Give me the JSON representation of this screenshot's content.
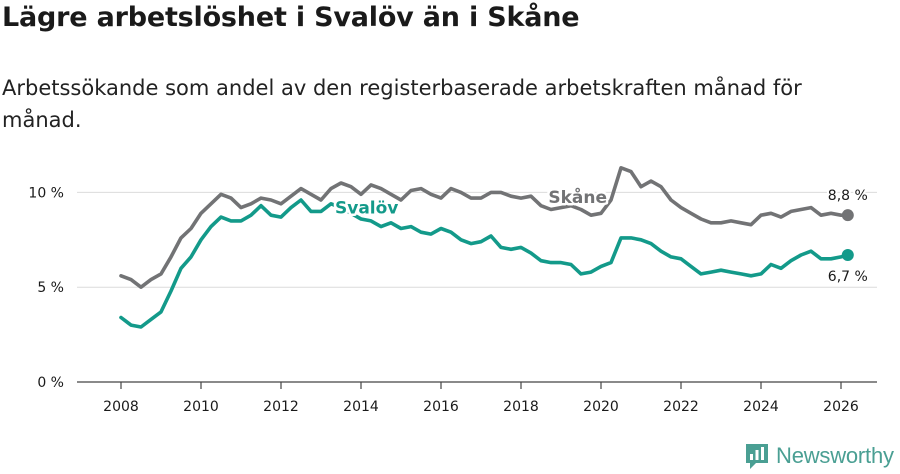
{
  "title": "Lägre arbetslöshet i Svalöv än i Skåne",
  "subtitle": "Arbetssökande som andel av den registerbaserade arbetskraften månad för månad.",
  "brand": {
    "name": "Newsworthy",
    "icon": "newsworthy-logo-icon"
  },
  "colors": {
    "svalov": "#139a8a",
    "skane": "#727375",
    "grid": "#dcdcdc",
    "axis": "#444444",
    "text": "#1a1a1a"
  },
  "chart_data": {
    "type": "line",
    "title": "Lägre arbetslöshet i Svalöv än i Skåne",
    "xlabel": "",
    "ylabel": "",
    "xlim": [
      2006.9,
      2026.9
    ],
    "ylim": [
      0,
      11.5
    ],
    "xticks": [
      2008,
      2010,
      2012,
      2014,
      2016,
      2018,
      2020,
      2022,
      2024,
      2026
    ],
    "xtick_labels": [
      "2008",
      "2010",
      "2012",
      "2014",
      "2016",
      "2018",
      "2020",
      "2022",
      "2024",
      "2026"
    ],
    "yticks": [
      0,
      5,
      10
    ],
    "ytick_labels": [
      "0 %",
      "5 %",
      "10 %"
    ],
    "grid": true,
    "legend": "inline labels",
    "series": [
      {
        "name": "Skåne",
        "label": "Skåne",
        "end_label": "8,8 %",
        "points": [
          [
            2008.0,
            5.6
          ],
          [
            2008.25,
            5.4
          ],
          [
            2008.5,
            5.0
          ],
          [
            2008.75,
            5.4
          ],
          [
            2009.0,
            5.7
          ],
          [
            2009.25,
            6.6
          ],
          [
            2009.5,
            7.6
          ],
          [
            2009.75,
            8.1
          ],
          [
            2010.0,
            8.9
          ],
          [
            2010.25,
            9.4
          ],
          [
            2010.5,
            9.9
          ],
          [
            2010.75,
            9.7
          ],
          [
            2011.0,
            9.2
          ],
          [
            2011.25,
            9.4
          ],
          [
            2011.5,
            9.7
          ],
          [
            2011.75,
            9.6
          ],
          [
            2012.0,
            9.4
          ],
          [
            2012.25,
            9.8
          ],
          [
            2012.5,
            10.2
          ],
          [
            2012.75,
            9.9
          ],
          [
            2013.0,
            9.6
          ],
          [
            2013.25,
            10.2
          ],
          [
            2013.5,
            10.5
          ],
          [
            2013.75,
            10.3
          ],
          [
            2014.0,
            9.9
          ],
          [
            2014.25,
            10.4
          ],
          [
            2014.5,
            10.2
          ],
          [
            2014.75,
            9.9
          ],
          [
            2015.0,
            9.6
          ],
          [
            2015.25,
            10.1
          ],
          [
            2015.5,
            10.2
          ],
          [
            2015.75,
            9.9
          ],
          [
            2016.0,
            9.7
          ],
          [
            2016.25,
            10.2
          ],
          [
            2016.5,
            10.0
          ],
          [
            2016.75,
            9.7
          ],
          [
            2017.0,
            9.7
          ],
          [
            2017.25,
            10.0
          ],
          [
            2017.5,
            10.0
          ],
          [
            2017.75,
            9.8
          ],
          [
            2018.0,
            9.7
          ],
          [
            2018.25,
            9.8
          ],
          [
            2018.5,
            9.3
          ],
          [
            2018.75,
            9.1
          ],
          [
            2019.0,
            9.2
          ],
          [
            2019.25,
            9.3
          ],
          [
            2019.5,
            9.1
          ],
          [
            2019.75,
            8.8
          ],
          [
            2020.0,
            8.9
          ],
          [
            2020.25,
            9.6
          ],
          [
            2020.5,
            11.3
          ],
          [
            2020.75,
            11.1
          ],
          [
            2021.0,
            10.3
          ],
          [
            2021.25,
            10.6
          ],
          [
            2021.5,
            10.3
          ],
          [
            2021.75,
            9.6
          ],
          [
            2022.0,
            9.2
          ],
          [
            2022.25,
            8.9
          ],
          [
            2022.5,
            8.6
          ],
          [
            2022.75,
            8.4
          ],
          [
            2023.0,
            8.4
          ],
          [
            2023.25,
            8.5
          ],
          [
            2023.5,
            8.4
          ],
          [
            2023.75,
            8.3
          ],
          [
            2024.0,
            8.8
          ],
          [
            2024.25,
            8.9
          ],
          [
            2024.5,
            8.7
          ],
          [
            2024.75,
            9.0
          ],
          [
            2025.0,
            9.1
          ],
          [
            2025.25,
            9.2
          ],
          [
            2025.5,
            8.8
          ],
          [
            2025.75,
            8.9
          ],
          [
            2026.0,
            8.8
          ],
          [
            2026.17,
            8.8
          ]
        ]
      },
      {
        "name": "Svalöv",
        "label": "Svalöv",
        "end_label": "6,7 %",
        "points": [
          [
            2008.0,
            3.4
          ],
          [
            2008.25,
            3.0
          ],
          [
            2008.5,
            2.9
          ],
          [
            2008.75,
            3.3
          ],
          [
            2009.0,
            3.7
          ],
          [
            2009.25,
            4.8
          ],
          [
            2009.5,
            6.0
          ],
          [
            2009.75,
            6.6
          ],
          [
            2010.0,
            7.5
          ],
          [
            2010.25,
            8.2
          ],
          [
            2010.5,
            8.7
          ],
          [
            2010.75,
            8.5
          ],
          [
            2011.0,
            8.5
          ],
          [
            2011.25,
            8.8
          ],
          [
            2011.5,
            9.3
          ],
          [
            2011.75,
            8.8
          ],
          [
            2012.0,
            8.7
          ],
          [
            2012.25,
            9.2
          ],
          [
            2012.5,
            9.6
          ],
          [
            2012.75,
            9.0
          ],
          [
            2013.0,
            9.0
          ],
          [
            2013.25,
            9.4
          ],
          [
            2013.5,
            9.2
          ],
          [
            2013.75,
            8.9
          ],
          [
            2014.0,
            8.6
          ],
          [
            2014.25,
            8.5
          ],
          [
            2014.5,
            8.2
          ],
          [
            2014.75,
            8.4
          ],
          [
            2015.0,
            8.1
          ],
          [
            2015.25,
            8.2
          ],
          [
            2015.5,
            7.9
          ],
          [
            2015.75,
            7.8
          ],
          [
            2016.0,
            8.1
          ],
          [
            2016.25,
            7.9
          ],
          [
            2016.5,
            7.5
          ],
          [
            2016.75,
            7.3
          ],
          [
            2017.0,
            7.4
          ],
          [
            2017.25,
            7.7
          ],
          [
            2017.5,
            7.1
          ],
          [
            2017.75,
            7.0
          ],
          [
            2018.0,
            7.1
          ],
          [
            2018.25,
            6.8
          ],
          [
            2018.5,
            6.4
          ],
          [
            2018.75,
            6.3
          ],
          [
            2019.0,
            6.3
          ],
          [
            2019.25,
            6.2
          ],
          [
            2019.5,
            5.7
          ],
          [
            2019.75,
            5.8
          ],
          [
            2020.0,
            6.1
          ],
          [
            2020.25,
            6.3
          ],
          [
            2020.5,
            7.6
          ],
          [
            2020.75,
            7.6
          ],
          [
            2021.0,
            7.5
          ],
          [
            2021.25,
            7.3
          ],
          [
            2021.5,
            6.9
          ],
          [
            2021.75,
            6.6
          ],
          [
            2022.0,
            6.5
          ],
          [
            2022.25,
            6.1
          ],
          [
            2022.5,
            5.7
          ],
          [
            2022.75,
            5.8
          ],
          [
            2023.0,
            5.9
          ],
          [
            2023.25,
            5.8
          ],
          [
            2023.5,
            5.7
          ],
          [
            2023.75,
            5.6
          ],
          [
            2024.0,
            5.7
          ],
          [
            2024.25,
            6.2
          ],
          [
            2024.5,
            6.0
          ],
          [
            2024.75,
            6.4
          ],
          [
            2025.0,
            6.7
          ],
          [
            2025.25,
            6.9
          ],
          [
            2025.5,
            6.5
          ],
          [
            2025.75,
            6.5
          ],
          [
            2026.0,
            6.6
          ],
          [
            2026.17,
            6.7
          ]
        ]
      }
    ]
  }
}
